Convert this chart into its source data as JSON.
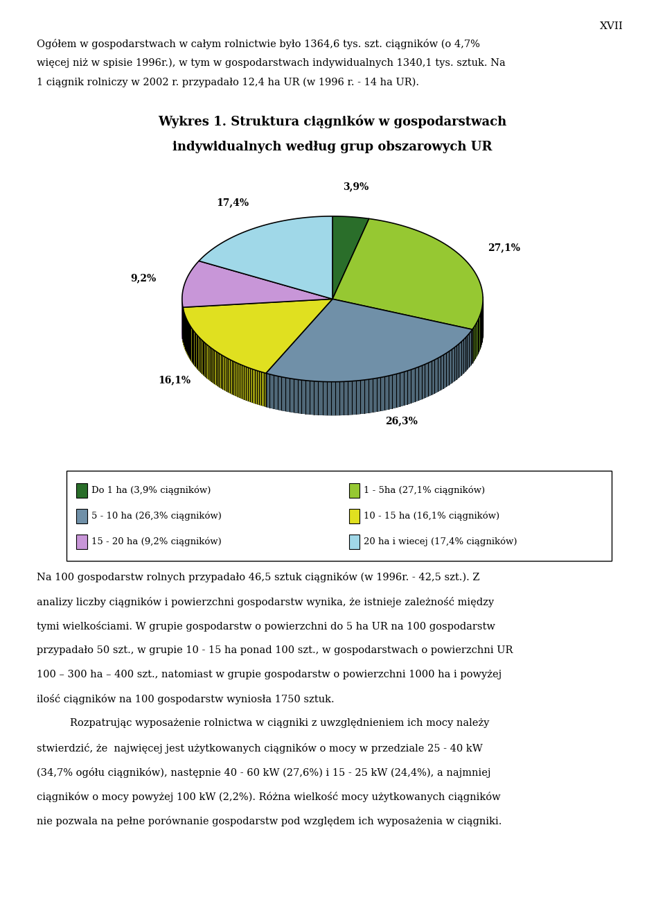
{
  "title_line1": "Wykres 1. Struktura ciągników w gospodarstwach",
  "title_line2": "indywidualnych według grup obszarowych UR",
  "slices": [
    3.9,
    27.1,
    26.3,
    16.1,
    9.2,
    17.4
  ],
  "colors": [
    "#2a6e2a",
    "#96c832",
    "#7090a8",
    "#e0e020",
    "#c896d8",
    "#a0d8e8"
  ],
  "dark_colors": [
    "#1a4e1a",
    "#6a9820",
    "#506878",
    "#a0a010",
    "#9066a8",
    "#70a8b8"
  ],
  "labels": [
    "Do 1 ha (3,9% ciągników)",
    "1 - 5ha (27,1% ciągników)",
    "5 - 10 ha (26,3% ciągników)",
    "10 - 15 ha (16,1% ciągników)",
    "15 - 20 ha (9,2% ciągników)",
    "20 ha i wiecej (17,4% ciągników)"
  ],
  "pct_labels": [
    "3,9%",
    "27,1%",
    "26,3%",
    "16,1%",
    "9,2%",
    "17,4%"
  ],
  "background_color": "#ffffff",
  "text_color": "#000000",
  "page_text_lines": [
    "Ogółem w gospodarstwach w całym rolnictwie było 1364,6 tys. szt. ciągników (o 4,7%",
    "więcej niż w spisie 1996r.), w tym w gospodarstwach indywidualnych 1340,1 tys. sztuk. Na",
    "1 ciągnik rolniczy w 2002 r. przypadało 12,4 ha UR (w 1996 r. - 14 ha UR)."
  ],
  "bottom_text_lines": [
    "Na 100 gospodarstw rolnych przypadało 46,5 sztuk ciągników (w 1996r. - 42,5 szt.). Z",
    "analizy liczby ciągników i powierzchni gospodarstw wynika, że istnieje zależność między",
    "tymi wielkościami. W grupie gospodarstw o powierzchni do 5 ha UR na 100 gospodarstw",
    "przypadało 50 szt., w grupie 10 - 15 ha ponad 100 szt., w gospodarstwach o powierzchni UR",
    "100 – 300 ha – 400 szt., natomiast w grupie gospodarstw o powierzchni 1000 ha i powyżej",
    "ilość ciągników na 100 gospodarstw wyniosła 1750 sztuk.",
    "Rozpatrując wyposażenie rolnictwa w ciągniki z uwzględnieniem ich mocy należy",
    "stwierdzić, że  najwięcej jest użytkowanych ciągników o mocy w przedziale 25 - 40 kW",
    "(34,7% ogółu ciągników), następnie 40 - 60 kW (27,6%) i 15 - 25 kW (24,4%), a najmniej",
    "ciągników o mocy powyżej 100 kW (2,2%). Różna wielkość mocy użytkowanych ciągników",
    "nie pozwala na pełne porównanie gospodarstw pod względem ich wyposażenia w ciągniki."
  ],
  "page_number": "XVII"
}
